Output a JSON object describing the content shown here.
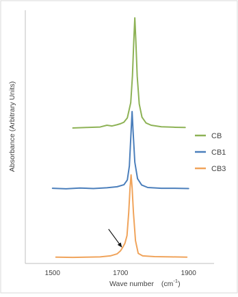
{
  "chart_data": {
    "type": "line",
    "title": "",
    "xlabel": "Wave number",
    "xlabel_unit_base": "(cm",
    "xlabel_unit_sup": "-1",
    "xlabel_unit_close": ")",
    "ylabel": "Absorbance (Arbitrary Units)",
    "xlim": [
      1420,
      1975
    ],
    "ylim": [
      0,
      1
    ],
    "x_ticks": [
      1500,
      1700,
      1900
    ],
    "y_ticks_shown": false,
    "grid": false,
    "legend_position": "right",
    "series": [
      {
        "name": "CB",
        "color": "#8db255",
        "points": [
          [
            1560,
            0.535
          ],
          [
            1600,
            0.537
          ],
          [
            1640,
            0.539
          ],
          [
            1660,
            0.546
          ],
          [
            1675,
            0.543
          ],
          [
            1690,
            0.548
          ],
          [
            1700,
            0.552
          ],
          [
            1710,
            0.558
          ],
          [
            1720,
            0.575
          ],
          [
            1730,
            0.635
          ],
          [
            1735,
            0.74
          ],
          [
            1739,
            0.88
          ],
          [
            1742,
            0.97
          ],
          [
            1745,
            0.88
          ],
          [
            1749,
            0.74
          ],
          [
            1755,
            0.63
          ],
          [
            1763,
            0.578
          ],
          [
            1775,
            0.555
          ],
          [
            1790,
            0.546
          ],
          [
            1820,
            0.54
          ],
          [
            1860,
            0.538
          ],
          [
            1890,
            0.537
          ]
        ]
      },
      {
        "name": "CB1",
        "color": "#4a7ebb",
        "points": [
          [
            1500,
            0.297
          ],
          [
            1540,
            0.295
          ],
          [
            1580,
            0.298
          ],
          [
            1620,
            0.296
          ],
          [
            1660,
            0.299
          ],
          [
            1690,
            0.303
          ],
          [
            1710,
            0.311
          ],
          [
            1720,
            0.33
          ],
          [
            1726,
            0.385
          ],
          [
            1731,
            0.52
          ],
          [
            1734,
            0.6
          ],
          [
            1737,
            0.52
          ],
          [
            1742,
            0.4
          ],
          [
            1750,
            0.335
          ],
          [
            1762,
            0.31
          ],
          [
            1780,
            0.3
          ],
          [
            1820,
            0.297
          ],
          [
            1860,
            0.297
          ],
          [
            1900,
            0.296
          ]
        ]
      },
      {
        "name": "CB3",
        "color": "#f0a35a",
        "points": [
          [
            1510,
            0.025
          ],
          [
            1560,
            0.024
          ],
          [
            1600,
            0.025
          ],
          [
            1640,
            0.026
          ],
          [
            1670,
            0.03
          ],
          [
            1690,
            0.038
          ],
          [
            1700,
            0.05
          ],
          [
            1707,
            0.065
          ],
          [
            1713,
            0.08
          ],
          [
            1719,
            0.11
          ],
          [
            1724,
            0.2
          ],
          [
            1728,
            0.3
          ],
          [
            1731,
            0.35
          ],
          [
            1734,
            0.3
          ],
          [
            1738,
            0.2
          ],
          [
            1744,
            0.09
          ],
          [
            1752,
            0.04
          ],
          [
            1765,
            0.03
          ],
          [
            1800,
            0.027
          ],
          [
            1850,
            0.026
          ],
          [
            1895,
            0.025
          ]
        ]
      }
    ],
    "annotations": [
      {
        "type": "arrow",
        "points_to": {
          "x": 1705,
          "y": 0.06
        }
      }
    ]
  }
}
